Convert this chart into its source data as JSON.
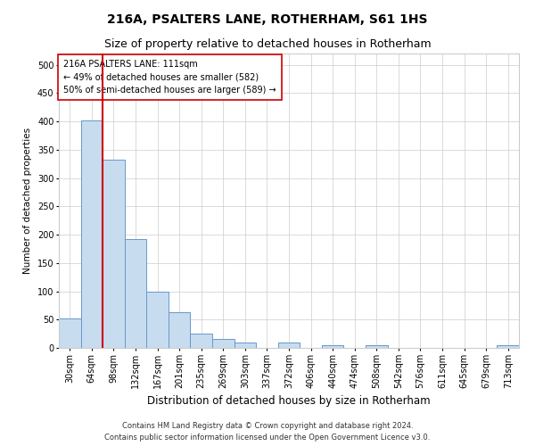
{
  "title": "216A, PSALTERS LANE, ROTHERHAM, S61 1HS",
  "subtitle": "Size of property relative to detached houses in Rotherham",
  "xlabel": "Distribution of detached houses by size in Rotherham",
  "ylabel": "Number of detached properties",
  "categories": [
    "30sqm",
    "64sqm",
    "98sqm",
    "132sqm",
    "167sqm",
    "201sqm",
    "235sqm",
    "269sqm",
    "303sqm",
    "337sqm",
    "372sqm",
    "406sqm",
    "440sqm",
    "474sqm",
    "508sqm",
    "542sqm",
    "576sqm",
    "611sqm",
    "645sqm",
    "679sqm",
    "713sqm"
  ],
  "values": [
    52,
    402,
    332,
    192,
    100,
    63,
    25,
    15,
    10,
    0,
    10,
    0,
    5,
    0,
    5,
    0,
    0,
    0,
    0,
    0,
    5
  ],
  "bar_color": "#c8dcf0",
  "bar_edge_color": "#6699cc",
  "vline_color": "#cc0000",
  "annotation_text": "216A PSALTERS LANE: 111sqm\n← 49% of detached houses are smaller (582)\n50% of semi-detached houses are larger (589) →",
  "annotation_box_color": "#ffffff",
  "annotation_box_edge": "#cc0000",
  "ylim": [
    0,
    520
  ],
  "yticks": [
    0,
    50,
    100,
    150,
    200,
    250,
    300,
    350,
    400,
    450,
    500
  ],
  "grid_color": "#cccccc",
  "background_color": "#ffffff",
  "footer": "Contains HM Land Registry data © Crown copyright and database right 2024.\nContains public sector information licensed under the Open Government Licence v3.0.",
  "title_fontsize": 10,
  "subtitle_fontsize": 9,
  "xlabel_fontsize": 8.5,
  "ylabel_fontsize": 7.5,
  "tick_fontsize": 7,
  "annotation_fontsize": 7,
  "footer_fontsize": 6
}
